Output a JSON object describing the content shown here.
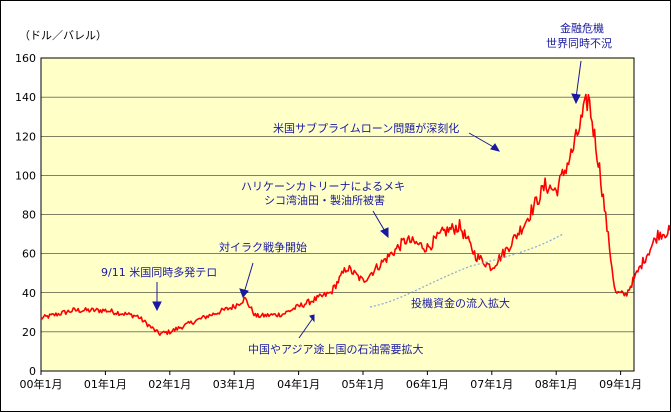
{
  "chart_data": {
    "type": "line",
    "ylabel": "（ドル／バレル）",
    "ylim": [
      0,
      160
    ],
    "yticks": [
      "0",
      "20",
      "40",
      "60",
      "80",
      "100",
      "120",
      "140",
      "160"
    ],
    "xticks": [
      "00年1月",
      "01年1月",
      "02年1月",
      "03年1月",
      "04年1月",
      "05年1月",
      "06年1月",
      "07年1月",
      "08年1月",
      "09年1月"
    ],
    "x_start_label": "00年1月",
    "grid": "horizontal",
    "series": [
      {
        "color": "#ff0000",
        "x": [
          "00年1月",
          "00年7月",
          "01年1月",
          "01年7月",
          "01年11月",
          "02年1月",
          "02年7月",
          "03年1月",
          "03年3月",
          "03年5月",
          "03年10月",
          "04年1月",
          "04年7月",
          "04年10月",
          "05年1月",
          "05年4月",
          "05年9月",
          "06年1月",
          "06年4月",
          "06年7月",
          "06年10月",
          "07年1月",
          "07年4月",
          "07年7月",
          "07年11月",
          "08年1月",
          "08年4月",
          "08年7月",
          "08年9月",
          "08年12月",
          "09年2月",
          "09年5月",
          "09年8月",
          "09年11月"
        ],
        "values": [
          27,
          31,
          31,
          28,
          19,
          20,
          27,
          33,
          37,
          28,
          29,
          33,
          40,
          53,
          46,
          54,
          67,
          63,
          71,
          74,
          59,
          53,
          63,
          75,
          95,
          92,
          112,
          140,
          105,
          40,
          39,
          55,
          70,
          72
        ]
      }
    ],
    "annotations": [
      {
        "text": "9/11 米国同時多発テロ"
      },
      {
        "text": "対イラク戦争開始"
      },
      {
        "text": "中国やアジア途上国の石油需要拡大"
      },
      {
        "text": "ハリケーンカトリーナによるメキ"
      },
      {
        "text": "シコ湾油田・製油所被害"
      },
      {
        "text": "投機資金の流入拡大"
      },
      {
        "text": "米国サブプライムローン問題が深刻化"
      },
      {
        "text": "金融危機"
      },
      {
        "text": "世界同時不況"
      }
    ]
  }
}
